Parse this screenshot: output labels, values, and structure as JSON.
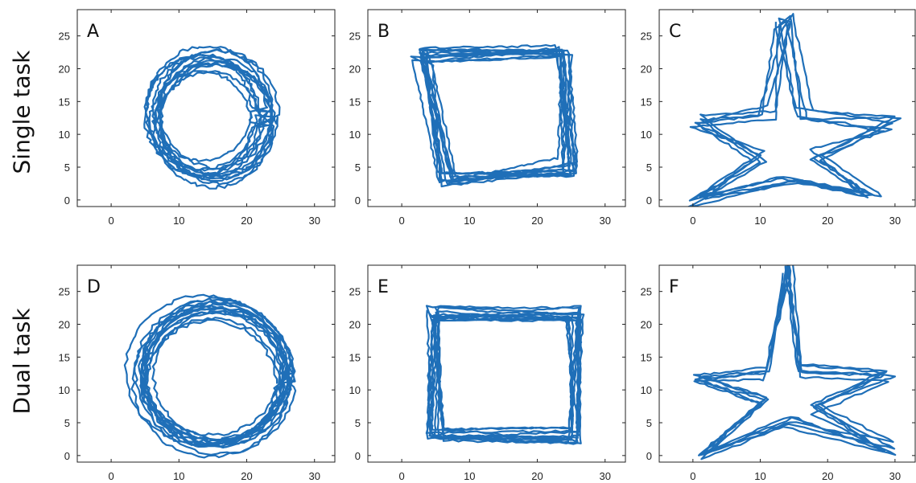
{
  "row_labels": [
    "Single task",
    "Dual task"
  ],
  "series_color": "#1f6fb8",
  "chart_data": [
    {
      "type": "line",
      "panel": "A",
      "condition": "Single task",
      "shape": "circle",
      "xlim": [
        -5,
        33
      ],
      "ylim": [
        -1,
        29
      ],
      "xticks": [
        0,
        10,
        20,
        30
      ],
      "yticks": [
        0,
        5,
        10,
        15,
        20,
        25
      ],
      "path": {
        "center": [
          14.5,
          12.7
        ],
        "radius": [
          8.2,
          8.8
        ],
        "loops": 13,
        "jitter": 1.6
      }
    },
    {
      "type": "line",
      "panel": "B",
      "condition": "Single task",
      "shape": "square",
      "xlim": [
        -5,
        33
      ],
      "ylim": [
        -1,
        29
      ],
      "xticks": [
        0,
        10,
        20,
        30
      ],
      "yticks": [
        0,
        5,
        10,
        15,
        20,
        25
      ],
      "path": {
        "corners": [
          [
            3,
            22
          ],
          [
            24,
            22.5
          ],
          [
            24.5,
            5
          ],
          [
            6.5,
            3.5
          ]
        ],
        "loops": 12,
        "jitter": 1.5
      }
    },
    {
      "type": "line",
      "panel": "C",
      "condition": "Single task",
      "shape": "star",
      "xlim": [
        -5,
        33
      ],
      "ylim": [
        -1,
        29
      ],
      "xticks": [
        0,
        10,
        20,
        30
      ],
      "yticks": [
        0,
        5,
        10,
        15,
        20,
        25
      ],
      "path": {
        "vertices": [
          [
            13.5,
            27.5
          ],
          [
            16.5,
            13
          ],
          [
            29.5,
            11.5
          ],
          [
            18,
            7
          ],
          [
            27,
            0.5
          ],
          [
            14.5,
            4
          ],
          [
            0.5,
            0
          ],
          [
            10,
            7
          ],
          [
            0,
            12.5
          ],
          [
            11,
            13
          ]
        ],
        "loops": 5,
        "jitter": 1.4
      }
    },
    {
      "type": "line",
      "panel": "D",
      "condition": "Dual task",
      "shape": "circle",
      "xlim": [
        -5,
        33
      ],
      "ylim": [
        -1,
        29
      ],
      "xticks": [
        0,
        10,
        20,
        30
      ],
      "yticks": [
        0,
        5,
        10,
        15,
        20,
        25
      ],
      "path": {
        "center": [
          15,
          12.2
        ],
        "radius": [
          10.5,
          10.3
        ],
        "loops": 14,
        "jitter": 1.2
      }
    },
    {
      "type": "line",
      "panel": "E",
      "condition": "Dual task",
      "shape": "square",
      "xlim": [
        -5,
        33
      ],
      "ylim": [
        -1,
        29
      ],
      "xticks": [
        0,
        10,
        20,
        30
      ],
      "yticks": [
        0,
        5,
        10,
        15,
        20,
        25
      ],
      "path": {
        "corners": [
          [
            4.5,
            21.5
          ],
          [
            25.5,
            21.5
          ],
          [
            25.5,
            3
          ],
          [
            5,
            3
          ]
        ],
        "loops": 12,
        "jitter": 1.3
      }
    },
    {
      "type": "line",
      "panel": "F",
      "condition": "Dual task",
      "shape": "star",
      "xlim": [
        -5,
        33
      ],
      "ylim": [
        -1,
        29
      ],
      "xticks": [
        0,
        10,
        20,
        30
      ],
      "yticks": [
        0,
        5,
        10,
        15,
        20,
        25
      ],
      "path": {
        "vertices": [
          [
            14,
            28.5
          ],
          [
            16.5,
            13
          ],
          [
            29.5,
            12
          ],
          [
            18.5,
            7
          ],
          [
            29,
            1
          ],
          [
            14.5,
            5
          ],
          [
            1,
            0.5
          ],
          [
            10.5,
            8
          ],
          [
            0.5,
            11.5
          ],
          [
            11,
            12.5
          ]
        ],
        "loops": 5,
        "jitter": 1.1
      }
    }
  ]
}
